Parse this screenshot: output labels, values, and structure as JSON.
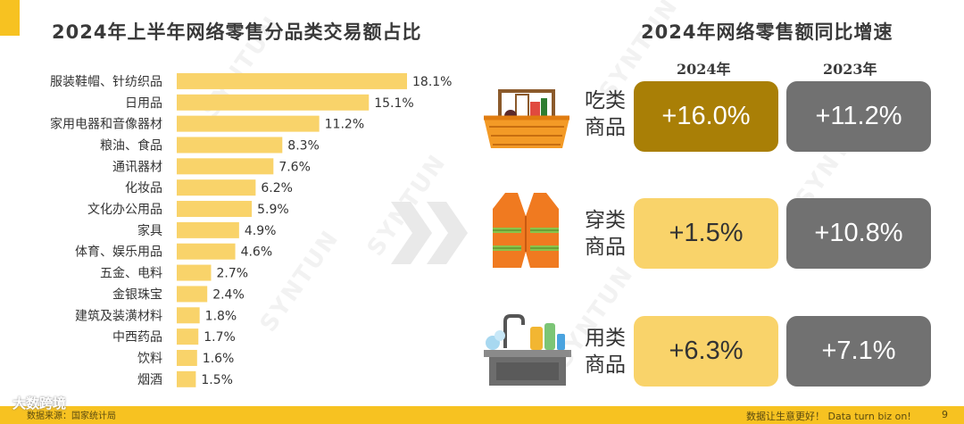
{
  "left_title": "2024年上半年网络零售分品类交易额占比",
  "right_title": "2024年网络零售额同比增速",
  "watermark": "SYNTUN",
  "brand": "大数跨境",
  "footer": {
    "source": "数据来源：国家统计局",
    "slogan": "数据让生意更好！ Data turn biz on!",
    "page": "9"
  },
  "colors": {
    "bar": "#f9d36a",
    "highlight_dark": "#a97f06",
    "highlight_light": "#f9d36a",
    "grey_box": "#717171",
    "accent": "#f7c221"
  },
  "chart_data": [
    {
      "type": "bar",
      "orientation": "horizontal",
      "title": "2024年上半年网络零售分品类交易额占比",
      "categories": [
        "服装鞋帽、针纺织品",
        "日用品",
        "家用电器和音像器材",
        "粮油、食品",
        "通讯器材",
        "化妆品",
        "文化办公用品",
        "家具",
        "体育、娱乐用品",
        "五金、电料",
        "金银珠宝",
        "建筑及装潢材料",
        "中西药品",
        "饮料",
        "烟酒"
      ],
      "values": [
        18.1,
        15.1,
        11.2,
        8.3,
        7.6,
        6.2,
        5.9,
        4.9,
        4.6,
        2.7,
        2.4,
        1.8,
        1.7,
        1.6,
        1.5
      ],
      "value_labels": [
        "18.1%",
        "15.1%",
        "11.2%",
        "8.3%",
        "7.6%",
        "6.2%",
        "5.9%",
        "4.9%",
        "4.6%",
        "2.7%",
        "2.4%",
        "1.8%",
        "1.7%",
        "1.6%",
        "1.5%"
      ],
      "unit": "%"
    },
    {
      "type": "table",
      "title": "2024年网络零售额同比增速",
      "columns": [
        "2024年",
        "2023年"
      ],
      "rows": [
        {
          "category": "吃类商品",
          "line1": "吃类",
          "line2": "商品",
          "icon": "food-basket-icon",
          "values": [
            "+16.0%",
            "+11.2%"
          ]
        },
        {
          "category": "穿类商品",
          "line1": "穿类",
          "line2": "商品",
          "icon": "safety-vest-icon",
          "values": [
            "+1.5%",
            "+10.8%"
          ]
        },
        {
          "category": "用类商品",
          "line1": "用类",
          "line2": "商品",
          "icon": "kitchen-sink-icon",
          "values": [
            "+6.3%",
            "+7.1%"
          ]
        }
      ]
    }
  ]
}
